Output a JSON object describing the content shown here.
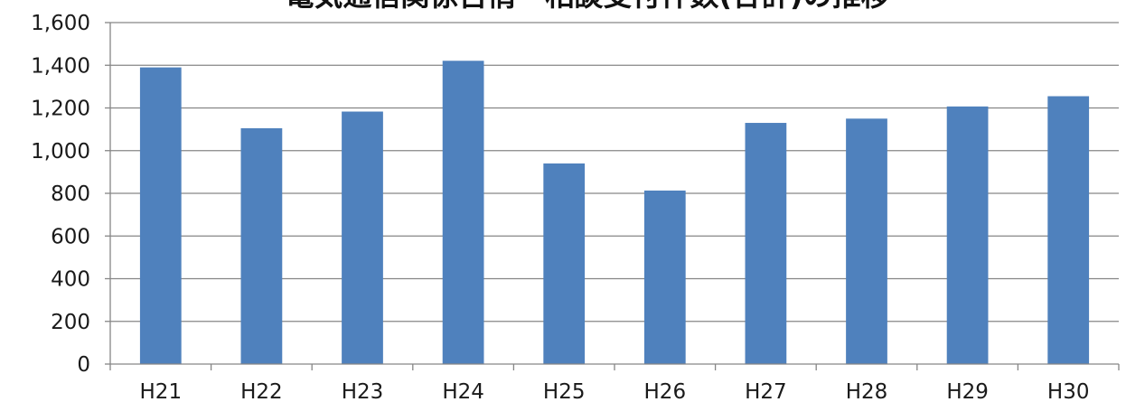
{
  "chart_data": {
    "type": "bar",
    "title": "電気通信関係苦情・相談受付件数(合計)の推移",
    "categories": [
      "H21",
      "H22",
      "H23",
      "H24",
      "H25",
      "H26",
      "H27",
      "H28",
      "H29",
      "H30"
    ],
    "values": [
      1390,
      1105,
      1183,
      1421,
      940,
      813,
      1130,
      1150,
      1207,
      1255
    ],
    "ylim": [
      0,
      1600
    ],
    "yticks": [
      "0",
      "200",
      "400",
      "600",
      "800",
      "1,000",
      "1,200",
      "1,400",
      "1,600"
    ],
    "xlabel": "",
    "ylabel": "",
    "grid": true,
    "bar_color": "#4F81BD",
    "grid_color": "#868686"
  }
}
